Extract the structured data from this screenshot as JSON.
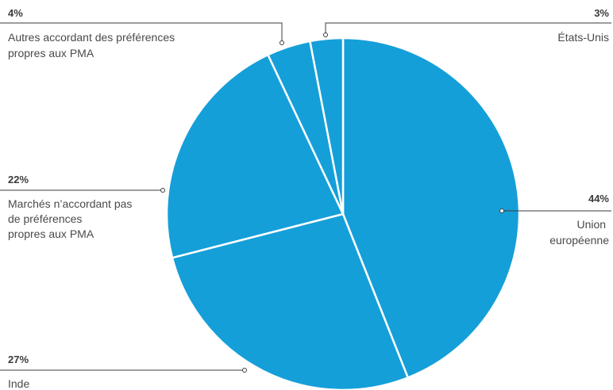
{
  "chart_data": {
    "type": "pie",
    "color": "#159fd9",
    "slices": [
      {
        "label": [
          "Union",
          "européenne"
        ],
        "value": 44,
        "pct_label": "44%"
      },
      {
        "label": [
          "Inde"
        ],
        "value": 27,
        "pct_label": "27%"
      },
      {
        "label": [
          "Marchés n’accordant pas",
          "de préférences",
          "propres aux PMA"
        ],
        "value": 22,
        "pct_label": "22%"
      },
      {
        "label": [
          "Autres accordant des préférences",
          "propres aux PMA"
        ],
        "value": 4,
        "pct_label": "4%"
      },
      {
        "label": [
          "États-Unis"
        ],
        "value": 3,
        "pct_label": "3%"
      }
    ]
  }
}
